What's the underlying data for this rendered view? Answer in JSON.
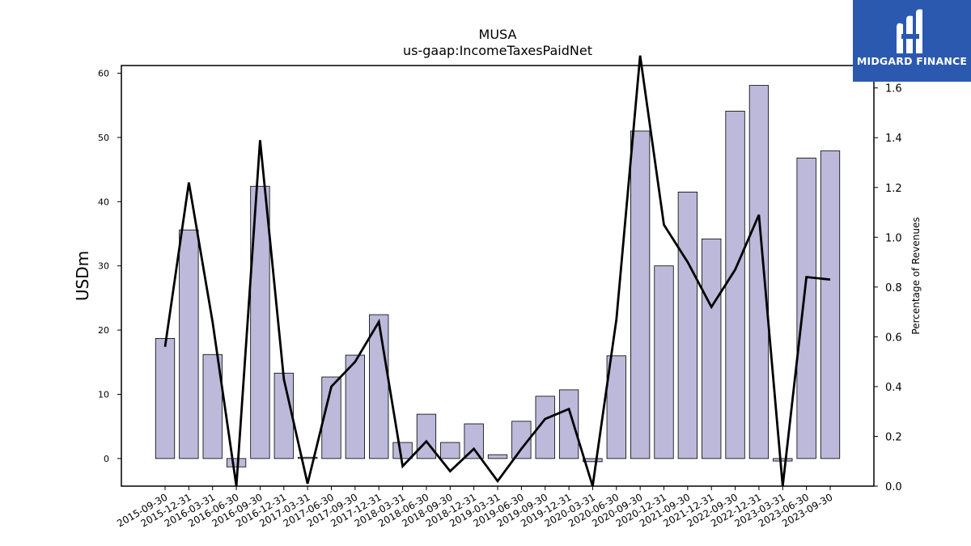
{
  "chart_data": {
    "type": "bar",
    "title": "MUSA",
    "subtitle": "us-gaap:IncomeTaxesPaidNet",
    "ylabel": "USDm",
    "y2label": "Percentage of Revenues",
    "ylim": [
      -4.3,
      61.2
    ],
    "y2lim": [
      0.0,
      1.69
    ],
    "yticks": [
      0,
      10,
      20,
      30,
      40,
      50,
      60
    ],
    "y2ticks": [
      0.0,
      0.2,
      0.4,
      0.6,
      0.8,
      1.0,
      1.2,
      1.4,
      1.6
    ],
    "categories": [
      "2015-09-30",
      "2015-12-31",
      "2016-03-31",
      "2016-06-30",
      "2016-09-30",
      "2016-12-31",
      "2017-03-31",
      "2017-06-30",
      "2017-09-30",
      "2017-12-31",
      "2018-03-31",
      "2018-06-30",
      "2018-09-30",
      "2018-12-31",
      "2019-03-31",
      "2019-06-30",
      "2019-09-30",
      "2019-12-31",
      "2020-03-31",
      "2020-06-30",
      "2020-09-30",
      "2020-12-31",
      "2021-09-30",
      "2021-12-31",
      "2022-09-30",
      "2022-12-31",
      "2023-03-31",
      "2023-06-30",
      "2023-09-30"
    ],
    "series": [
      {
        "type": "bar",
        "axis": "left",
        "color": "#bcb9da",
        "values": [
          18.7,
          35.6,
          16.2,
          -1.3,
          42.4,
          13.3,
          0.2,
          12.7,
          16.1,
          22.4,
          2.5,
          6.9,
          2.5,
          5.4,
          0.6,
          5.8,
          9.7,
          10.7,
          -0.5,
          16.0,
          51.0,
          30.0,
          41.5,
          34.2,
          54.1,
          58.1,
          -0.4,
          46.8,
          47.9
        ]
      },
      {
        "type": "line",
        "axis": "right",
        "color": "#000000",
        "values": [
          0.56,
          1.22,
          0.66,
          0.0,
          1.39,
          0.43,
          0.01,
          0.4,
          0.5,
          0.66,
          0.08,
          0.18,
          0.06,
          0.15,
          0.02,
          0.15,
          0.27,
          0.31,
          0.0,
          0.67,
          1.73,
          1.05,
          0.9,
          0.72,
          0.87,
          1.09,
          0.0,
          0.84,
          0.83
        ]
      }
    ],
    "grid": false
  },
  "logo": {
    "text": "MIDGARD FINANCE"
  }
}
